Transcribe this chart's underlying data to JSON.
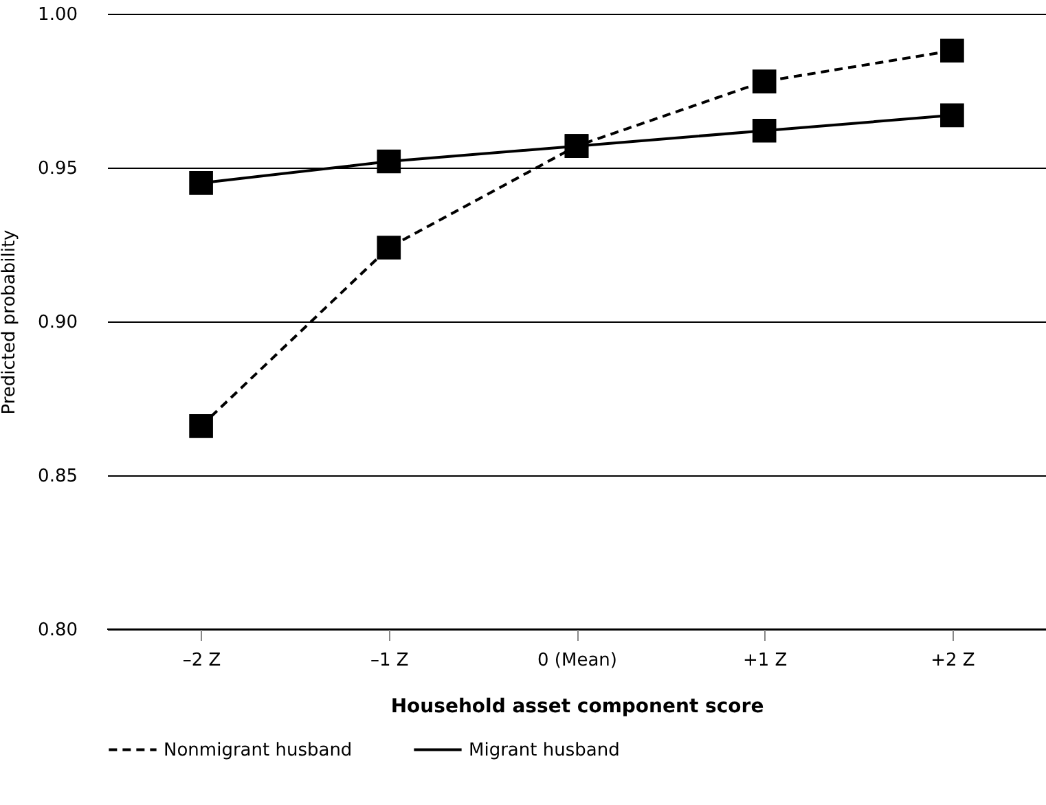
{
  "chart_data": {
    "type": "line",
    "xlabel": "Household asset component score",
    "ylabel": "Predicted probability",
    "categories": [
      "–2 Z",
      "–1 Z",
      "0 (Mean)",
      "+1 Z",
      "+2 Z"
    ],
    "series": [
      {
        "name": "Nonmigrant husband",
        "color": "#000000",
        "line_style": "dashed",
        "values": [
          0.866,
          0.924,
          0.957,
          0.978,
          0.988
        ]
      },
      {
        "name": "Migrant husband",
        "color": "#000000",
        "line_style": "solid",
        "values": [
          0.945,
          0.952,
          0.957,
          0.962,
          0.967
        ]
      }
    ],
    "ylim": [
      0.8,
      1.0
    ],
    "yticks": [
      {
        "value": 0.8,
        "label": "0.80"
      },
      {
        "value": 0.85,
        "label": "0.85"
      },
      {
        "value": 0.9,
        "label": "0.90"
      },
      {
        "value": 0.95,
        "label": "0.95"
      },
      {
        "value": 1.0,
        "label": "1.00"
      }
    ],
    "grid": "y",
    "legend": "bottom",
    "marker": "square"
  }
}
